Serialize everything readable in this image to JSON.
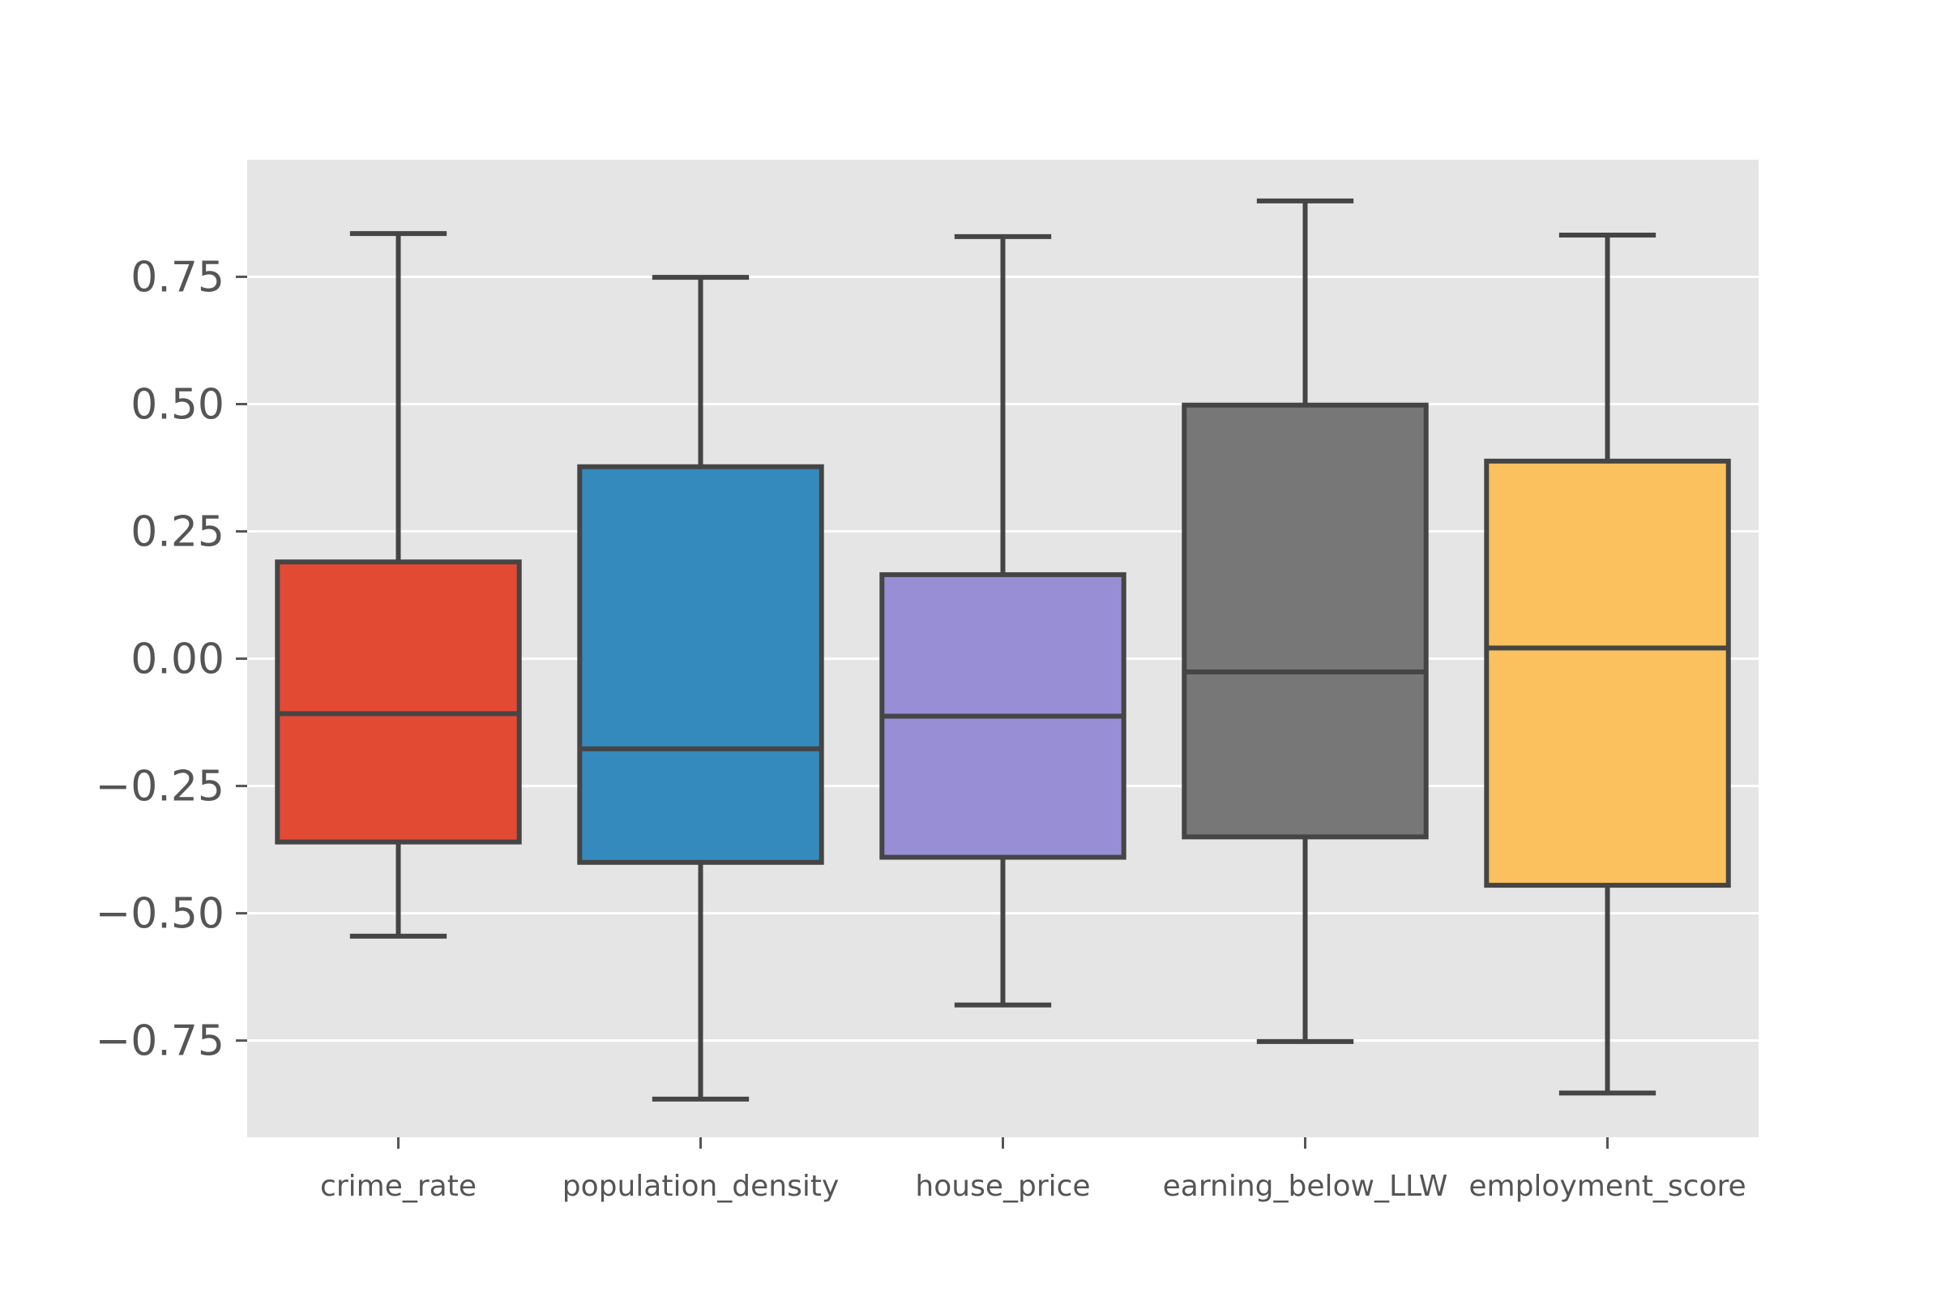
{
  "chart_data": {
    "type": "box",
    "title": "",
    "xlabel": "",
    "ylabel": "",
    "categories": [
      "crime_rate",
      "population_density",
      "house_price",
      "earning_below_LLW",
      "employment_score"
    ],
    "boxes": [
      {
        "category": "crime_rate",
        "whisker_low": -0.545,
        "q1": -0.36,
        "median": -0.108,
        "q3": 0.19,
        "whisker_high": 0.835,
        "color": "#E24A33"
      },
      {
        "category": "population_density",
        "whisker_low": -0.865,
        "q1": -0.4,
        "median": -0.177,
        "q3": 0.377,
        "whisker_high": 0.749,
        "color": "#348ABD"
      },
      {
        "category": "house_price",
        "whisker_low": -0.68,
        "q1": -0.39,
        "median": -0.113,
        "q3": 0.165,
        "whisker_high": 0.829,
        "color": "#988ED5"
      },
      {
        "category": "earning_below_LLW",
        "whisker_low": -0.752,
        "q1": -0.35,
        "median": -0.026,
        "q3": 0.498,
        "whisker_high": 0.899,
        "color": "#777777"
      },
      {
        "category": "employment_score",
        "whisker_low": -0.853,
        "q1": -0.445,
        "median": 0.021,
        "q3": 0.388,
        "whisker_high": 0.832,
        "color": "#FBC15E"
      }
    ],
    "ylim": [
      -0.94,
      0.98
    ],
    "yticks": [
      -0.75,
      -0.5,
      -0.25,
      0.0,
      0.25,
      0.5,
      0.75
    ],
    "ytick_labels": [
      "−0.75",
      "−0.50",
      "−0.25",
      "0.00",
      "0.25",
      "0.50",
      "0.75"
    ],
    "grid": true,
    "background_color": "#E5E5E5",
    "grid_color": "#FFFFFF",
    "line_color": "#454545"
  }
}
